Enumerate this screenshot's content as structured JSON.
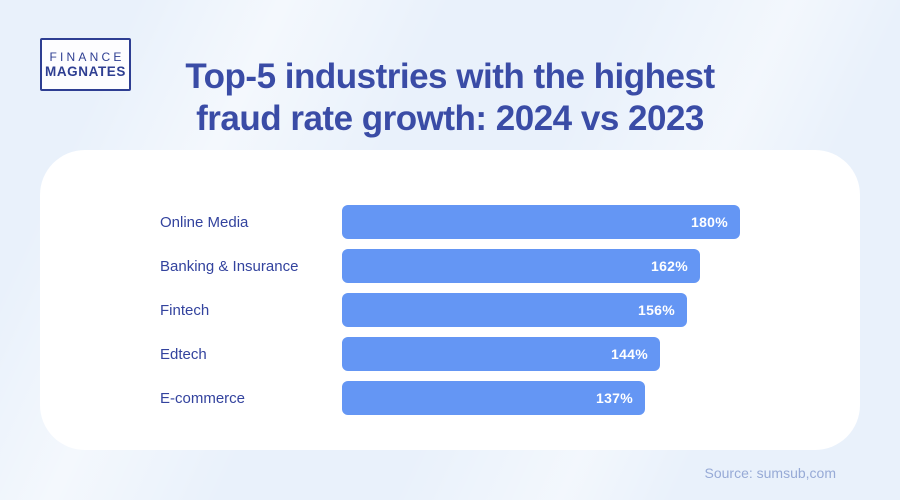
{
  "logo": {
    "line1": "FINANCE",
    "line2": "MAGNATES"
  },
  "title": {
    "line1": "Top-5 industries with the highest",
    "line2": "fraud rate growth: 2024 vs 2023"
  },
  "source": "Source: sumsub,com",
  "colors": {
    "background": "#e9f1fb",
    "card": "#ffffff",
    "title_text": "#3a4ca6",
    "label_text": "#33439e",
    "bar_fill": "#6496f4",
    "bar_value_text": "#ffffff",
    "source_text": "#97aad6",
    "logo_navy": "#2e3e92"
  },
  "chart_data": {
    "type": "bar",
    "orientation": "horizontal",
    "title": "Top-5 industries with the highest fraud rate growth: 2024 vs 2023",
    "categories": [
      "Online Media",
      "Banking & Insurance",
      "Fintech",
      "Edtech",
      "E-commerce"
    ],
    "values": [
      180,
      162,
      156,
      144,
      137
    ],
    "labels": [
      "180%",
      "162%",
      "156%",
      "144%",
      "137%"
    ],
    "unit": "%",
    "xlim": [
      0,
      180
    ],
    "grid": false,
    "legend": false,
    "value_labels_position": "inside-end"
  }
}
